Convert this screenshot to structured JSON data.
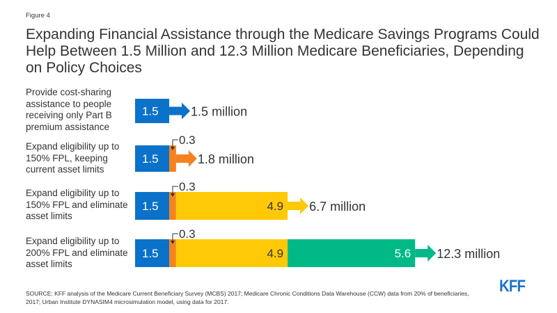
{
  "figure_label": "Figure 4",
  "title": "Expanding Financial Assistance through the Medicare Savings Programs Could Help Between 1.5 Million and 12.3 Million Medicare Beneficiaries, Depending on Policy Choices",
  "source": "SOURCE: KFF analysis of the Medicare Current Beneficiary Survey (MCBS) 2017; Medicare Chronic Conditions Data Warehouse (CCW) data from 20% of beneficiaries, 2017; Urban Institute DYNASIM4 microsimulation model, using data for 2017.",
  "logo": "KFF",
  "colors": {
    "blue": "#0b72c9",
    "orange": "#f58220",
    "yellow": "#ffc907",
    "green": "#00b987",
    "logo": "#1a73cc"
  },
  "chart_data": {
    "type": "bar",
    "orientation": "horizontal",
    "stacked": true,
    "title": "Expanding Financial Assistance through the Medicare Savings Programs Could Help Between 1.5 Million and 12.3 Million Medicare Beneficiaries, Depending on Policy Choices",
    "xlabel": "",
    "ylabel": "",
    "unit": "million",
    "categories": [
      "Provide cost-sharing assistance to people receiving only Part B premium assistance",
      "Expand eligibility up to 150% FPL, keeping current asset limits",
      "Expand eligibility up to 150% FPL and eliminate asset limits",
      "Expand eligibility up to 200% FPL and eliminate asset limits"
    ],
    "series": [
      {
        "name": "segment-1",
        "color": "#0b72c9",
        "values": [
          1.5,
          1.5,
          1.5,
          1.5
        ],
        "labels": [
          "1.5",
          "1.5",
          "1.5",
          "1.5"
        ]
      },
      {
        "name": "segment-2",
        "color": "#f58220",
        "values": [
          0,
          0.3,
          0.3,
          0.3
        ],
        "labels": [
          "",
          "0.3",
          "0.3",
          "0.3"
        ]
      },
      {
        "name": "segment-3",
        "color": "#ffc907",
        "values": [
          0,
          0,
          4.9,
          4.9
        ],
        "labels": [
          "",
          "",
          "4.9",
          "4.9"
        ]
      },
      {
        "name": "segment-4",
        "color": "#00b987",
        "values": [
          0,
          0,
          0,
          5.6
        ],
        "labels": [
          "",
          "",
          "",
          "5.6"
        ]
      }
    ],
    "totals": [
      1.5,
      1.8,
      6.7,
      12.3
    ],
    "total_labels": [
      "1.5 million",
      "1.8 million",
      "6.7 million",
      "12.3 million"
    ],
    "xlim": [
      0,
      12.3
    ],
    "grid": false,
    "legend": "none"
  }
}
